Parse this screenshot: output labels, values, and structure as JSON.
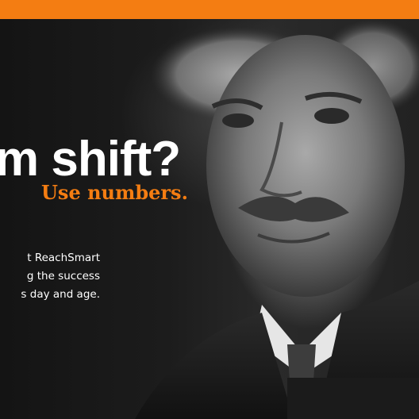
{
  "hero": {
    "headline": "m shift?",
    "subheadline": "Use numbers.",
    "body_lines": [
      "t  ReachSmart",
      "g the success",
      "s day and age."
    ],
    "image": "portrait-photo"
  },
  "colors": {
    "accent": "#f47d12",
    "text": "#ffffff",
    "background": "#1a1a1a"
  }
}
